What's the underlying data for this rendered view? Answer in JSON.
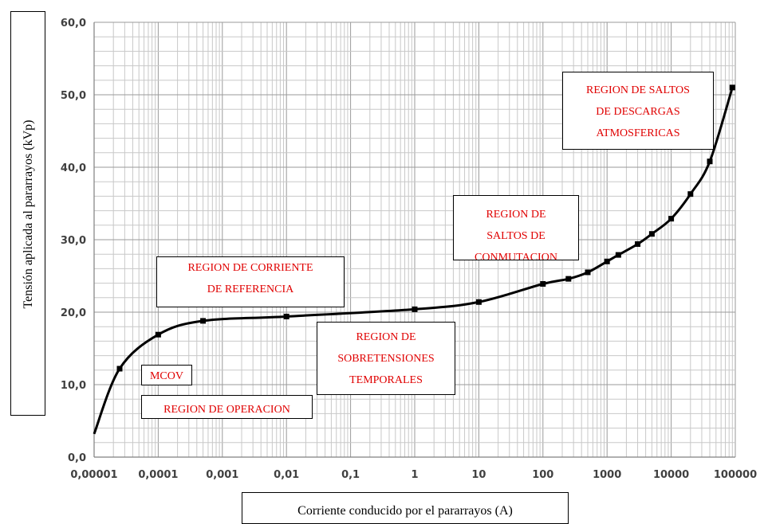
{
  "chart_data": {
    "type": "line",
    "title": "",
    "xlabel": "Corriente  conducido por el pararrayos (A)",
    "ylabel": "Tensión aplicada  al pararrayos (kVp)",
    "x_scale": "log",
    "xlim": [
      1e-05,
      100000
    ],
    "ylim": [
      0,
      60
    ],
    "grid": true,
    "x_ticks": [
      "0,00001",
      "0,0001",
      "0,001",
      "0,01",
      "0,1",
      "1",
      "10",
      "100",
      "1000",
      "10000",
      "100000"
    ],
    "y_ticks": [
      "0,0",
      "10,0",
      "20,0",
      "30,0",
      "40,0",
      "50,0",
      "60,0"
    ],
    "series": [
      {
        "color": "#000000",
        "x": [
          1e-05,
          2.5e-05,
          0.0001,
          0.0005,
          0.01,
          1,
          10,
          100,
          250,
          500,
          1000,
          1500,
          3000,
          5000,
          10000,
          20000,
          40000,
          90000
        ],
        "y": [
          3.2,
          12.2,
          16.9,
          18.8,
          19.4,
          20.4,
          21.4,
          23.9,
          24.6,
          25.5,
          27.0,
          27.9,
          29.4,
          30.8,
          32.9,
          36.3,
          40.8,
          51.0
        ]
      }
    ],
    "annotations": [
      {
        "lines": [
          "REGION DE CORRIENTE",
          "DE REFERENCIA"
        ]
      },
      {
        "lines": [
          "MCOV"
        ]
      },
      {
        "lines": [
          "REGION DE OPERACION"
        ]
      },
      {
        "lines": [
          "REGION DE",
          "SOBRETENSIONES",
          "TEMPORALES"
        ]
      },
      {
        "lines": [
          "REGION DE",
          "SALTOS DE",
          "CONMUTACION"
        ]
      },
      {
        "lines": [
          "REGION DE SALTOS",
          "DE DESCARGAS",
          "ATMOSFERICAS"
        ]
      }
    ]
  },
  "colors": {
    "annotation_text": "#e00000",
    "grid": "#c8c8c8",
    "curve": "#000000"
  }
}
